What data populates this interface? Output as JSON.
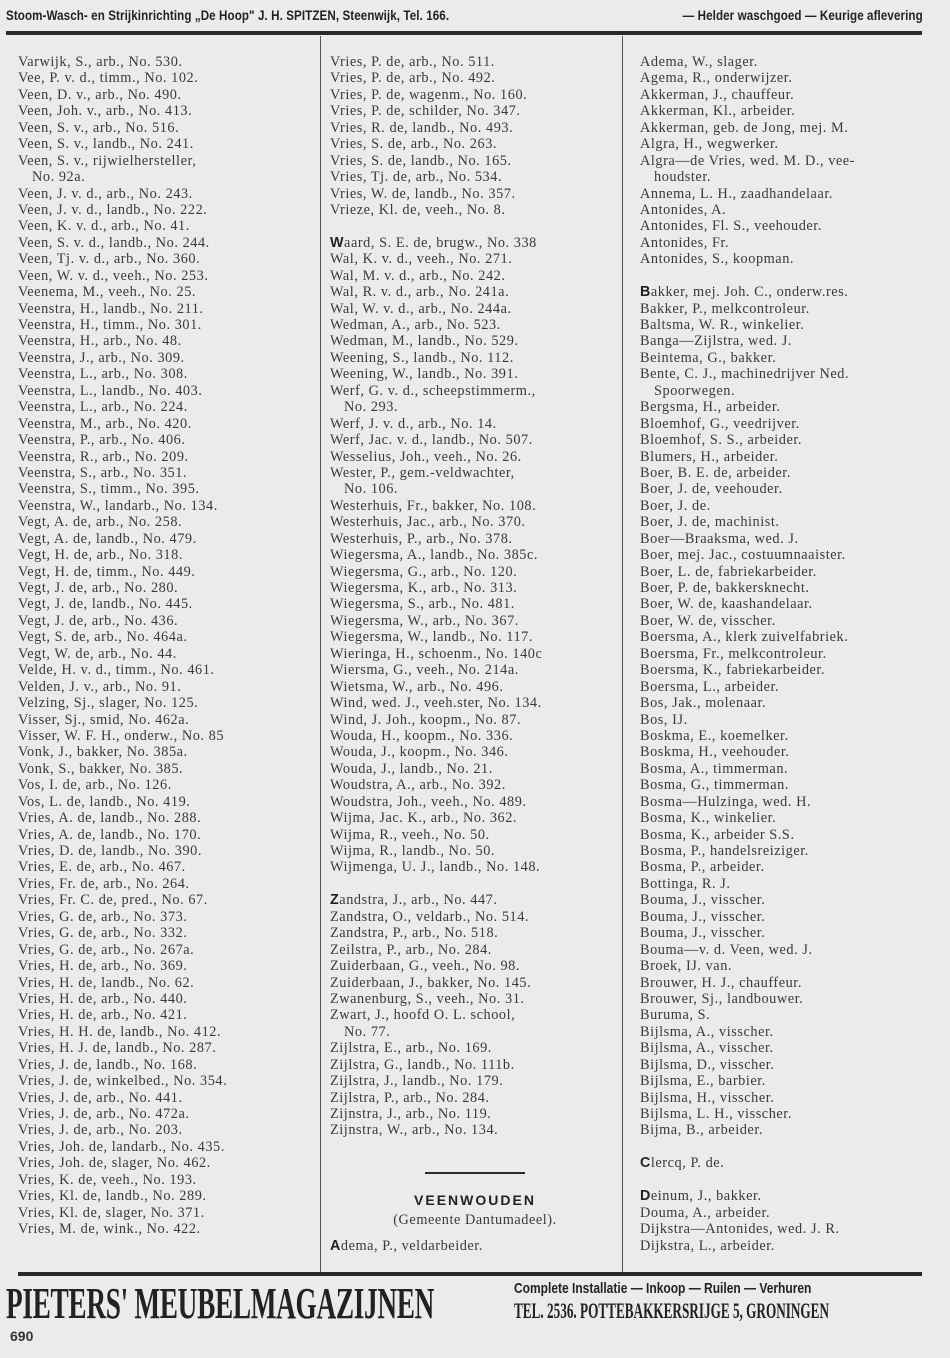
{
  "header": {
    "left": "Stoom-Wasch- en Strijkinrichting „De Hoop\" J. H. SPITZEN, Steenwijk, Tel. 166.",
    "right": "— Helder waschgoed — Keurige aflevering"
  },
  "columns": [
    [
      {
        "t": "Varwijk, S., arb., No. 530."
      },
      {
        "t": "Vee, P. v. d., timm., No. 102."
      },
      {
        "t": "Veen, D. v., arb., No. 490."
      },
      {
        "t": "Veen, Joh. v., arb., No. 413."
      },
      {
        "t": "Veen, S. v., arb., No. 516."
      },
      {
        "t": "Veen, S. v., landb., No. 241."
      },
      {
        "t": "Veen, S. v., rijwielhersteller,"
      },
      {
        "t": "No. 92a.",
        "i": true
      },
      {
        "t": "Veen, J. v. d., arb., No. 243."
      },
      {
        "t": "Veen, J. v. d., landb., No. 222."
      },
      {
        "t": "Veen, K. v. d., arb., No. 41."
      },
      {
        "t": "Veen, S. v. d., landb., No. 244."
      },
      {
        "t": "Veen, Tj. v. d., arb., No. 360."
      },
      {
        "t": "Veen, W. v. d., veeh., No. 253."
      },
      {
        "t": "Veenema, M., veeh., No. 25."
      },
      {
        "t": "Veenstra, H., landb., No. 211."
      },
      {
        "t": "Veenstra, H., timm., No. 301."
      },
      {
        "t": "Veenstra, H., arb., No. 48."
      },
      {
        "t": "Veenstra, J., arb., No. 309."
      },
      {
        "t": "Veenstra, L., arb., No. 308."
      },
      {
        "t": "Veenstra, L., landb., No. 403."
      },
      {
        "t": "Veenstra, L., arb., No. 224."
      },
      {
        "t": "Veenstra, M., arb., No. 420."
      },
      {
        "t": "Veenstra, P., arb., No. 406."
      },
      {
        "t": "Veenstra, R., arb., No. 209."
      },
      {
        "t": "Veenstra, S., arb., No. 351."
      },
      {
        "t": "Veenstra, S., timm., No. 395."
      },
      {
        "t": "Veenstra, W., landarb., No. 134."
      },
      {
        "t": "Vegt, A. de, arb., No. 258."
      },
      {
        "t": "Vegt, A. de, landb., No. 479."
      },
      {
        "t": "Vegt, H. de, arb., No. 318."
      },
      {
        "t": "Vegt, H. de, timm., No. 449."
      },
      {
        "t": "Vegt, J. de, arb., No. 280."
      },
      {
        "t": "Vegt, J. de, landb., No. 445."
      },
      {
        "t": "Vegt, J. de, arb., No. 436."
      },
      {
        "t": "Vegt, S. de, arb., No. 464a."
      },
      {
        "t": "Vegt, W. de, arb., No. 44."
      },
      {
        "t": "Velde, H. v. d., timm., No. 461."
      },
      {
        "t": "Velden, J. v., arb., No. 91."
      },
      {
        "t": "Velzing, Sj., slager, No. 125."
      },
      {
        "t": "Visser, Sj., smid, No. 462a."
      },
      {
        "t": "Visser, W. F. H., onderw., No. 85"
      },
      {
        "t": "Vonk, J., bakker, No. 385a."
      },
      {
        "t": "Vonk, S., bakker, No. 385."
      },
      {
        "t": "Vos, I. de, arb., No. 126."
      },
      {
        "t": "Vos, L. de, landb., No. 419."
      },
      {
        "t": "Vries, A. de, landb., No. 288."
      },
      {
        "t": "Vries, A. de, landb., No. 170."
      },
      {
        "t": "Vries, D. de, landb., No. 390."
      },
      {
        "t": "Vries, E. de, arb., No. 467."
      },
      {
        "t": "Vries, Fr. de, arb., No. 264."
      },
      {
        "t": "Vries, Fr. C. de, pred., No. 67."
      },
      {
        "t": "Vries, G. de, arb., No. 373."
      },
      {
        "t": "Vries, G. de, arb., No. 332."
      },
      {
        "t": "Vries, G. de, arb., No. 267a."
      },
      {
        "t": "Vries, H. de, arb., No. 369."
      },
      {
        "t": "Vries, H. de, landb., No. 62."
      },
      {
        "t": "Vries, H. de, arb., No. 440."
      },
      {
        "t": "Vries, H. de, arb., No. 421."
      },
      {
        "t": "Vries, H. H. de, landb., No. 412."
      },
      {
        "t": "Vries, H. J. de, landb., No. 287."
      },
      {
        "t": "Vries, J. de, landb., No. 168."
      },
      {
        "t": "Vries, J. de, winkelbed., No. 354."
      },
      {
        "t": "Vries, J. de, arb., No. 441."
      },
      {
        "t": "Vries, J. de, arb., No. 472a."
      },
      {
        "t": "Vries, J. de, arb., No. 203."
      },
      {
        "t": "Vries, Joh. de, landarb., No. 435."
      },
      {
        "t": "Vries, Joh. de, slager, No. 462."
      },
      {
        "t": "Vries, K. de, veeh., No. 193."
      },
      {
        "t": "Vries, Kl. de, landb., No. 289."
      },
      {
        "t": "Vries, Kl. de, slager, No. 371."
      },
      {
        "t": "Vries, M. de, wink., No. 422."
      }
    ],
    [
      {
        "t": "Vries, P. de, arb., No. 511."
      },
      {
        "t": "Vries, P. de, arb., No. 492."
      },
      {
        "t": "Vries, P. de, wagenm., No. 160."
      },
      {
        "t": "Vries, P. de, schilder, No. 347."
      },
      {
        "t": "Vries, R. de, landb., No. 493."
      },
      {
        "t": "Vries, S. de, arb., No. 263."
      },
      {
        "t": "Vries, S. de, landb., No. 165."
      },
      {
        "t": "Vries, Tj. de, arb., No. 534."
      },
      {
        "t": "Vries, W. de, landb., No. 357."
      },
      {
        "t": "Vrieze, Kl. de, veeh., No. 8."
      },
      {
        "t": ""
      },
      {
        "t": "Waard, S. E. de, brugw., No. 338",
        "b": true
      },
      {
        "t": "Wal, K. v. d., veeh., No. 271."
      },
      {
        "t": "Wal, M. v. d., arb., No. 242."
      },
      {
        "t": "Wal, R. v. d., arb., No. 241a."
      },
      {
        "t": "Wal, W. v. d., arb., No. 244a."
      },
      {
        "t": "Wedman, A., arb., No. 523."
      },
      {
        "t": "Wedman, M., landb., No. 529."
      },
      {
        "t": "Weening, S., landb., No. 112."
      },
      {
        "t": "Weening, W., landb., No. 391."
      },
      {
        "t": "Werf, G. v. d., scheepstimmerm.,"
      },
      {
        "t": "No. 293.",
        "i": true
      },
      {
        "t": "Werf, J. v. d., arb., No. 14."
      },
      {
        "t": "Werf, Jac. v. d., landb., No. 507."
      },
      {
        "t": "Wesselius, Joh., veeh., No. 26."
      },
      {
        "t": "Wester, P., gem.-veldwachter,"
      },
      {
        "t": "No. 106.",
        "i": true
      },
      {
        "t": "Westerhuis, Fr., bakker, No. 108."
      },
      {
        "t": "Westerhuis, Jac., arb., No. 370."
      },
      {
        "t": "Westerhuis, P., arb., No. 378."
      },
      {
        "t": "Wiegersma, A., landb., No. 385c."
      },
      {
        "t": "Wiegersma, G., arb., No. 120."
      },
      {
        "t": "Wiegersma, K., arb., No. 313."
      },
      {
        "t": "Wiegersma, S., arb., No. 481."
      },
      {
        "t": "Wiegersma, W., arb., No. 367."
      },
      {
        "t": "Wiegersma, W., landb., No. 117."
      },
      {
        "t": "Wieringa, H., schoenm., No. 140c"
      },
      {
        "t": "Wiersma, G., veeh., No. 214a."
      },
      {
        "t": "Wietsma, W., arb., No. 496."
      },
      {
        "t": "Wind, wed. J., veeh.ster, No. 134."
      },
      {
        "t": "Wind, J. Joh., koopm., No. 87."
      },
      {
        "t": "Wouda, H., koopm., No. 336."
      },
      {
        "t": "Wouda, J., koopm., No. 346."
      },
      {
        "t": "Wouda, J., landb., No. 21."
      },
      {
        "t": "Woudstra, A., arb., No. 392."
      },
      {
        "t": "Woudstra, Joh., veeh., No. 489."
      },
      {
        "t": "Wijma, Jac. K., arb., No. 362."
      },
      {
        "t": "Wijma, R., veeh., No. 50."
      },
      {
        "t": "Wijma, R., landb., No. 50."
      },
      {
        "t": "Wijmenga, U. J., landb., No. 148."
      },
      {
        "t": ""
      },
      {
        "t": "Zandstra, J., arb., No. 447.",
        "b": true
      },
      {
        "t": "Zandstra, O., veldarb., No. 514."
      },
      {
        "t": "Zandstra, P., arb., No. 518."
      },
      {
        "t": "Zeilstra, P., arb., No. 284."
      },
      {
        "t": "Zuiderbaan, G., veeh., No. 98."
      },
      {
        "t": "Zuiderbaan, J., bakker, No. 145."
      },
      {
        "t": "Zwanenburg, S., veeh., No. 31."
      },
      {
        "t": "Zwart, J., hoofd O. L. school,"
      },
      {
        "t": "No. 77.",
        "i": true
      },
      {
        "t": "Zijlstra, E., arb., No. 169."
      },
      {
        "t": "Zijlstra, G., landb., No. 111b."
      },
      {
        "t": "Zijlstra, J., landb., No. 179."
      },
      {
        "t": "Zijlstra, P., arb., No. 284."
      },
      {
        "t": "Zijnstra, J., arb., No. 119."
      },
      {
        "t": "Zijnstra, W., arb., No. 134."
      }
    ],
    [
      {
        "t": "Adema, W., slager."
      },
      {
        "t": "Agema, R., onderwijzer."
      },
      {
        "t": "Akkerman, J., chauffeur."
      },
      {
        "t": "Akkerman, Kl., arbeider."
      },
      {
        "t": "Akkerman, geb. de Jong, mej. M."
      },
      {
        "t": "Algra, H., wegwerker."
      },
      {
        "t": "Algra—de Vries, wed. M. D., vee-"
      },
      {
        "t": "houdster.",
        "i": true
      },
      {
        "t": "Annema, L. H., zaadhandelaar."
      },
      {
        "t": "Antonides, A."
      },
      {
        "t": "Antonides, Fl. S., veehouder."
      },
      {
        "t": "Antonides, Fr."
      },
      {
        "t": "Antonides, S., koopman."
      },
      {
        "t": ""
      },
      {
        "t": "Bakker, mej. Joh. C., onderw.res.",
        "b": true
      },
      {
        "t": "Bakker, P., melkcontroleur."
      },
      {
        "t": "Baltsma, W. R., winkelier."
      },
      {
        "t": "Banga—Zijlstra, wed. J."
      },
      {
        "t": "Beintema, G., bakker."
      },
      {
        "t": "Bente, C. J., machinedrijver Ned."
      },
      {
        "t": "Spoorwegen.",
        "i": true
      },
      {
        "t": "Bergsma, H., arbeider."
      },
      {
        "t": "Bloemhof, G., veedrijver."
      },
      {
        "t": "Bloemhof, S. S., arbeider."
      },
      {
        "t": "Blumers, H., arbeider."
      },
      {
        "t": "Boer, B. E. de, arbeider."
      },
      {
        "t": "Boer, J. de, veehouder."
      },
      {
        "t": "Boer, J. de."
      },
      {
        "t": "Boer, J. de, machinist."
      },
      {
        "t": "Boer—Braaksma, wed. J."
      },
      {
        "t": "Boer, mej. Jac., costuumnaaister."
      },
      {
        "t": "Boer, L. de, fabriekarbeider."
      },
      {
        "t": "Boer, P. de, bakkersknecht."
      },
      {
        "t": "Boer, W. de, kaashandelaar."
      },
      {
        "t": "Boer, W. de, visscher."
      },
      {
        "t": "Boersma, A., klerk zuivelfabriek."
      },
      {
        "t": "Boersma, Fr., melkcontroleur."
      },
      {
        "t": "Boersma, K., fabriekarbeider."
      },
      {
        "t": "Boersma, L., arbeider."
      },
      {
        "t": "Bos, Jak., molenaar."
      },
      {
        "t": "Bos, IJ."
      },
      {
        "t": "Boskma, E., koemelker."
      },
      {
        "t": "Boskma, H., veehouder."
      },
      {
        "t": "Bosma, A., timmerman."
      },
      {
        "t": "Bosma, G., timmerman."
      },
      {
        "t": "Bosma—Hulzinga, wed. H."
      },
      {
        "t": "Bosma, K., winkelier."
      },
      {
        "t": "Bosma, K., arbeider S.S."
      },
      {
        "t": "Bosma, P., handelsreiziger."
      },
      {
        "t": "Bosma, P., arbeider."
      },
      {
        "t": "Bottinga, R. J."
      },
      {
        "t": "Bouma, J., visscher."
      },
      {
        "t": "Bouma, J., visscher."
      },
      {
        "t": "Bouma, J., visscher."
      },
      {
        "t": "Bouma—v. d. Veen, wed. J."
      },
      {
        "t": "Broek, IJ. van."
      },
      {
        "t": "Brouwer, H. J., chauffeur."
      },
      {
        "t": "Brouwer, Sj., landbouwer."
      },
      {
        "t": "Buruma, S."
      },
      {
        "t": "Bijlsma, A., visscher."
      },
      {
        "t": "Bijlsma, A., visscher."
      },
      {
        "t": "Bijlsma, D., visscher."
      },
      {
        "t": "Bijlsma, E., barbier."
      },
      {
        "t": "Bijlsma, H., visscher."
      },
      {
        "t": "Bijlsma, L. H., visscher."
      },
      {
        "t": "Bijma, B., arbeider."
      },
      {
        "t": ""
      },
      {
        "t": "Clercq, P. de.",
        "b": true
      },
      {
        "t": ""
      },
      {
        "t": "Deinum, J., bakker.",
        "b": true
      },
      {
        "t": "Douma, A., arbeider."
      },
      {
        "t": "Dijkstra—Antonides, wed. J. R."
      },
      {
        "t": "Dijkstra, L., arbeider."
      }
    ]
  ],
  "section": {
    "title": "VEENWOUDEN",
    "subtitle": "(Gemeente Dantumadeel).",
    "first_entry": {
      "t": "Adema, P., veldarbeider.",
      "b": true
    }
  },
  "footer": {
    "brand": "PIETERS' MEUBELMAGAZIJNEN",
    "line1": "Complete Installatie — Inkoop — Ruilen — Verhuren",
    "line2": "TEL. 2536. POTTEBAKKERSRIJGE 5, GRONINGEN"
  },
  "page_number": "690"
}
